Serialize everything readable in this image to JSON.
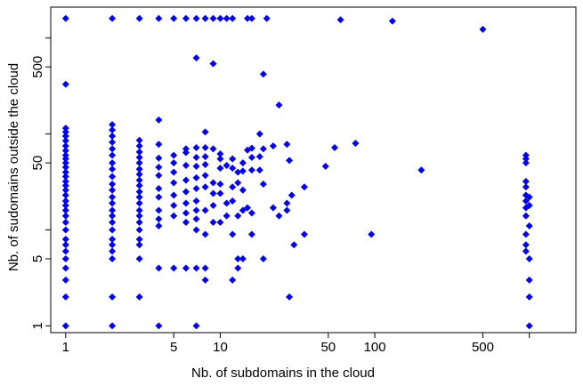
{
  "chart_data": {
    "type": "scatter",
    "title": "",
    "xlabel": "Nb. of subdomains in the cloud",
    "ylabel": "Nb. of sudomains outside the cloud",
    "x_scale": "log",
    "y_scale": "log",
    "xlim": [
      0.8,
      2000
    ],
    "ylim": [
      0.85,
      2100
    ],
    "x_ticks": [
      1,
      5,
      10,
      50,
      100,
      500,
      1000
    ],
    "x_tick_labels": [
      "1",
      "5",
      "10",
      "50",
      "100",
      "500",
      ""
    ],
    "y_ticks": [
      1,
      5,
      10,
      50,
      100,
      500,
      1000
    ],
    "y_tick_labels": [
      "1",
      "5",
      "",
      "50",
      "",
      "500",
      ""
    ],
    "grid": false,
    "marker": "diamond",
    "marker_color": "#0000EE",
    "points": [
      [
        1,
        1600
      ],
      [
        2,
        1600
      ],
      [
        3,
        1600
      ],
      [
        4,
        1600
      ],
      [
        5,
        1600
      ],
      [
        6,
        1600
      ],
      [
        7,
        1600
      ],
      [
        8,
        1600
      ],
      [
        9,
        1600
      ],
      [
        10,
        1600
      ],
      [
        11,
        1600
      ],
      [
        12,
        1600
      ],
      [
        15,
        1600
      ],
      [
        16,
        1600
      ],
      [
        20,
        1600
      ],
      [
        60,
        1550
      ],
      [
        130,
        1500
      ],
      [
        500,
        1230
      ],
      [
        1,
        1
      ],
      [
        2,
        1
      ],
      [
        4,
        1
      ],
      [
        7,
        1
      ],
      [
        1000,
        1
      ],
      [
        1,
        2
      ],
      [
        2,
        2
      ],
      [
        3,
        2
      ],
      [
        28,
        2
      ],
      [
        1000,
        2
      ],
      [
        1,
        3
      ],
      [
        8,
        3
      ],
      [
        12,
        3
      ],
      [
        1000,
        3
      ],
      [
        1,
        4
      ],
      [
        1,
        5
      ],
      [
        1,
        6
      ],
      [
        1,
        7
      ],
      [
        1,
        8
      ],
      [
        1,
        10
      ],
      [
        1,
        12
      ],
      [
        1,
        14
      ],
      [
        1,
        16
      ],
      [
        1,
        18
      ],
      [
        1,
        20
      ],
      [
        1,
        23
      ],
      [
        1,
        26
      ],
      [
        1,
        29
      ],
      [
        1,
        32
      ],
      [
        1,
        36
      ],
      [
        1,
        40
      ],
      [
        1,
        45
      ],
      [
        1,
        50
      ],
      [
        1,
        55
      ],
      [
        1,
        60
      ],
      [
        1,
        67
      ],
      [
        1,
        75
      ],
      [
        1,
        85
      ],
      [
        1,
        95
      ],
      [
        1,
        105
      ],
      [
        1,
        115
      ],
      [
        1,
        330
      ],
      [
        2,
        5
      ],
      [
        2,
        6
      ],
      [
        2,
        7
      ],
      [
        2,
        8
      ],
      [
        2,
        10
      ],
      [
        2,
        12
      ],
      [
        2,
        14
      ],
      [
        2,
        16
      ],
      [
        2,
        19
      ],
      [
        2,
        22
      ],
      [
        2,
        26
      ],
      [
        2,
        30
      ],
      [
        2,
        36
      ],
      [
        2,
        43
      ],
      [
        2,
        50
      ],
      [
        2,
        60
      ],
      [
        2,
        70
      ],
      [
        2,
        82
      ],
      [
        2,
        95
      ],
      [
        2,
        110
      ],
      [
        2,
        125
      ],
      [
        3,
        5
      ],
      [
        3,
        7
      ],
      [
        3,
        8
      ],
      [
        3,
        10
      ],
      [
        3,
        12
      ],
      [
        3,
        14
      ],
      [
        3,
        16
      ],
      [
        3,
        19
      ],
      [
        3,
        22
      ],
      [
        3,
        25
      ],
      [
        3,
        29
      ],
      [
        3,
        33
      ],
      [
        3,
        38
      ],
      [
        3,
        43
      ],
      [
        3,
        50
      ],
      [
        3,
        57
      ],
      [
        3,
        65
      ],
      [
        3,
        75
      ],
      [
        3,
        86
      ],
      [
        4,
        4
      ],
      [
        4,
        11
      ],
      [
        4,
        13
      ],
      [
        4,
        16
      ],
      [
        4,
        22
      ],
      [
        4,
        27
      ],
      [
        4,
        37
      ],
      [
        4,
        45
      ],
      [
        4,
        56
      ],
      [
        4,
        78
      ],
      [
        4,
        140
      ],
      [
        5,
        4
      ],
      [
        5,
        14
      ],
      [
        5,
        18
      ],
      [
        5,
        23
      ],
      [
        5,
        31
      ],
      [
        5,
        40
      ],
      [
        5,
        50
      ],
      [
        5,
        60
      ],
      [
        6,
        4
      ],
      [
        6,
        12
      ],
      [
        6,
        15
      ],
      [
        6,
        19
      ],
      [
        6,
        25
      ],
      [
        6,
        33
      ],
      [
        6,
        47
      ],
      [
        6,
        64
      ],
      [
        6,
        70
      ],
      [
        7,
        4
      ],
      [
        7,
        10
      ],
      [
        7,
        13
      ],
      [
        7,
        16
      ],
      [
        7,
        20
      ],
      [
        7,
        27
      ],
      [
        7,
        35
      ],
      [
        7,
        46
      ],
      [
        7,
        57
      ],
      [
        7,
        72
      ],
      [
        7,
        620
      ],
      [
        8,
        4
      ],
      [
        8,
        9
      ],
      [
        8,
        16
      ],
      [
        8,
        28
      ],
      [
        8,
        37
      ],
      [
        8,
        48
      ],
      [
        8,
        58
      ],
      [
        8,
        72
      ],
      [
        8,
        105
      ],
      [
        9,
        12
      ],
      [
        9,
        18
      ],
      [
        9,
        24
      ],
      [
        9,
        31
      ],
      [
        9,
        70
      ],
      [
        9,
        540
      ],
      [
        10,
        12
      ],
      [
        10,
        24
      ],
      [
        10,
        30
      ],
      [
        10,
        44
      ],
      [
        10,
        55
      ],
      [
        10,
        62
      ],
      [
        11,
        14
      ],
      [
        11,
        19
      ],
      [
        11,
        47
      ],
      [
        12,
        9
      ],
      [
        12,
        20
      ],
      [
        12,
        28
      ],
      [
        12,
        44
      ],
      [
        12,
        55
      ],
      [
        13,
        4
      ],
      [
        13,
        5
      ],
      [
        13,
        14
      ],
      [
        13,
        31
      ],
      [
        13,
        40
      ],
      [
        14,
        5
      ],
      [
        14,
        16
      ],
      [
        14,
        26
      ],
      [
        14,
        41
      ],
      [
        14,
        50
      ],
      [
        15,
        17
      ],
      [
        15,
        68
      ],
      [
        16,
        9
      ],
      [
        16,
        15
      ],
      [
        16,
        42
      ],
      [
        16,
        57
      ],
      [
        16,
        71
      ],
      [
        18,
        42
      ],
      [
        18,
        58
      ],
      [
        18,
        100
      ],
      [
        19,
        5
      ],
      [
        19,
        30
      ],
      [
        19,
        70
      ],
      [
        19,
        420
      ],
      [
        22,
        17
      ],
      [
        22,
        75
      ],
      [
        24,
        14
      ],
      [
        24,
        200
      ],
      [
        27,
        16
      ],
      [
        27,
        19
      ],
      [
        27,
        78
      ],
      [
        28,
        53
      ],
      [
        29,
        23
      ],
      [
        30,
        7
      ],
      [
        35,
        9
      ],
      [
        35,
        28
      ],
      [
        48,
        46
      ],
      [
        55,
        72
      ],
      [
        75,
        80
      ],
      [
        95,
        9
      ],
      [
        200,
        42
      ],
      [
        950,
        60
      ],
      [
        950,
        55
      ],
      [
        950,
        50
      ],
      [
        950,
        32
      ],
      [
        950,
        28
      ],
      [
        950,
        23
      ],
      [
        950,
        20
      ],
      [
        950,
        17
      ],
      [
        950,
        14
      ],
      [
        950,
        9
      ],
      [
        950,
        7
      ],
      [
        950,
        6
      ],
      [
        1000,
        22
      ],
      [
        1000,
        18
      ],
      [
        1000,
        11
      ],
      [
        1000,
        5
      ]
    ]
  }
}
